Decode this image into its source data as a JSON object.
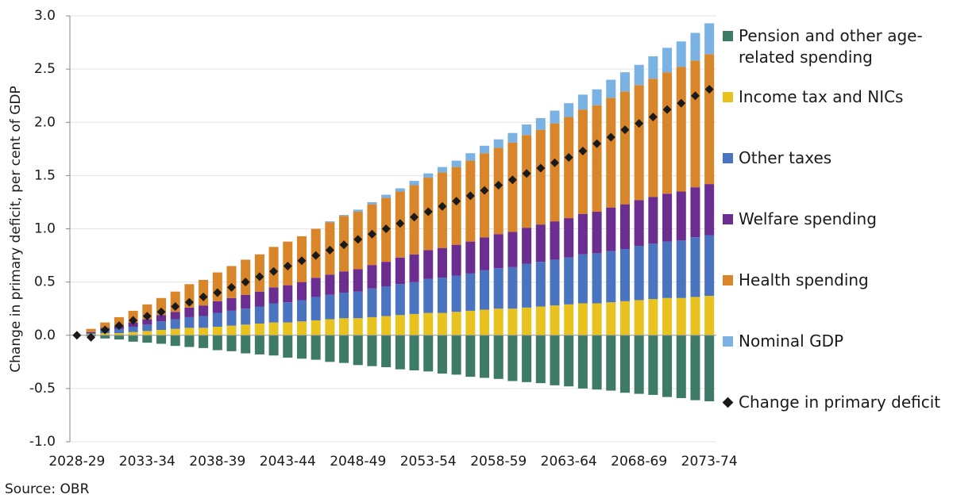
{
  "chart_data": {
    "type": "stacked-bar-line",
    "y_label": "Change in primary deficit, per cent of GDP",
    "source": "Source: OBR",
    "categories": [
      "2028-29",
      null,
      null,
      null,
      null,
      "2033-34",
      null,
      null,
      null,
      null,
      "2038-39",
      null,
      null,
      null,
      null,
      "2043-44",
      null,
      null,
      null,
      null,
      "2048-49",
      null,
      null,
      null,
      null,
      "2053-54",
      null,
      null,
      null,
      null,
      "2058-59",
      null,
      null,
      null,
      null,
      "2063-64",
      null,
      null,
      null,
      null,
      "2068-69",
      null,
      null,
      null,
      null,
      "2073-74"
    ],
    "ylim": [
      -1,
      3
    ],
    "yticks": [
      {
        "value": -1,
        "label": "-1.0"
      },
      {
        "value": -0.5,
        "label": "-0.5"
      },
      {
        "value": 0,
        "label": "0.0"
      },
      {
        "value": 0.5,
        "label": "0.5"
      },
      {
        "value": 1,
        "label": "1.0"
      },
      {
        "value": 1.5,
        "label": "1.5"
      },
      {
        "value": 2,
        "label": "2.0"
      },
      {
        "value": 2.5,
        "label": "2.5"
      },
      {
        "value": 3,
        "label": "3.0"
      }
    ],
    "grid": true,
    "series": [
      {
        "name": "Pension and other age-related spending",
        "color": "#3d7a68",
        "kind": "bar",
        "values": [
          0,
          -0.01,
          -0.03,
          -0.04,
          -0.06,
          -0.07,
          -0.08,
          -0.1,
          -0.11,
          -0.12,
          -0.14,
          -0.15,
          -0.17,
          -0.18,
          -0.19,
          -0.21,
          -0.22,
          -0.23,
          -0.25,
          -0.26,
          -0.28,
          -0.29,
          -0.3,
          -0.32,
          -0.33,
          -0.34,
          -0.36,
          -0.37,
          -0.39,
          -0.4,
          -0.41,
          -0.43,
          -0.44,
          -0.45,
          -0.47,
          -0.48,
          -0.5,
          -0.51,
          -0.52,
          -0.54,
          -0.55,
          -0.56,
          -0.58,
          -0.59,
          -0.61,
          -0.62
        ]
      },
      {
        "name": "Income tax and NICs",
        "color": "#e8c21f",
        "kind": "bar",
        "values": [
          0,
          0.01,
          0.02,
          0.02,
          0.03,
          0.04,
          0.05,
          0.06,
          0.07,
          0.07,
          0.08,
          0.09,
          0.1,
          0.11,
          0.12,
          0.12,
          0.13,
          0.14,
          0.15,
          0.16,
          0.16,
          0.17,
          0.18,
          0.19,
          0.2,
          0.21,
          0.21,
          0.22,
          0.23,
          0.24,
          0.25,
          0.25,
          0.26,
          0.27,
          0.28,
          0.29,
          0.3,
          0.3,
          0.31,
          0.32,
          0.33,
          0.34,
          0.35,
          0.35,
          0.36,
          0.37
        ]
      },
      {
        "name": "Other taxes",
        "color": "#4a74c0",
        "kind": "bar",
        "values": [
          0,
          0.01,
          0.03,
          0.04,
          0.05,
          0.06,
          0.08,
          0.09,
          0.1,
          0.11,
          0.13,
          0.14,
          0.15,
          0.16,
          0.18,
          0.19,
          0.2,
          0.22,
          0.23,
          0.24,
          0.25,
          0.27,
          0.28,
          0.29,
          0.3,
          0.32,
          0.33,
          0.34,
          0.35,
          0.37,
          0.38,
          0.39,
          0.41,
          0.42,
          0.43,
          0.44,
          0.46,
          0.47,
          0.48,
          0.49,
          0.51,
          0.52,
          0.53,
          0.54,
          0.56,
          0.57
        ]
      },
      {
        "name": "Welfare spending",
        "color": "#6b2d8f",
        "kind": "bar",
        "values": [
          0,
          0.01,
          0.02,
          0.03,
          0.04,
          0.05,
          0.06,
          0.07,
          0.09,
          0.1,
          0.11,
          0.12,
          0.13,
          0.14,
          0.15,
          0.16,
          0.17,
          0.18,
          0.19,
          0.2,
          0.21,
          0.22,
          0.23,
          0.25,
          0.26,
          0.27,
          0.28,
          0.29,
          0.3,
          0.31,
          0.32,
          0.33,
          0.34,
          0.35,
          0.36,
          0.37,
          0.38,
          0.39,
          0.41,
          0.42,
          0.43,
          0.44,
          0.45,
          0.46,
          0.47,
          0.48
        ]
      },
      {
        "name": "Health spending",
        "color": "#d9852a",
        "kind": "bar",
        "values": [
          0,
          0.03,
          0.05,
          0.08,
          0.11,
          0.14,
          0.16,
          0.19,
          0.22,
          0.24,
          0.27,
          0.3,
          0.33,
          0.35,
          0.38,
          0.41,
          0.43,
          0.46,
          0.49,
          0.52,
          0.54,
          0.57,
          0.6,
          0.62,
          0.65,
          0.68,
          0.71,
          0.73,
          0.76,
          0.79,
          0.81,
          0.84,
          0.87,
          0.89,
          0.92,
          0.95,
          0.98,
          1.0,
          1.03,
          1.06,
          1.08,
          1.11,
          1.14,
          1.17,
          1.19,
          1.22
        ]
      },
      {
        "name": "Nominal GDP",
        "color": "#7ab3e3",
        "kind": "bar",
        "values": [
          0,
          0,
          0,
          0,
          0,
          0,
          0,
          0,
          0,
          0,
          0,
          0,
          0,
          0,
          0,
          0,
          0,
          0,
          0.01,
          0.01,
          0.02,
          0.02,
          0.03,
          0.03,
          0.04,
          0.04,
          0.05,
          0.06,
          0.07,
          0.07,
          0.08,
          0.09,
          0.1,
          0.11,
          0.12,
          0.13,
          0.14,
          0.15,
          0.17,
          0.18,
          0.19,
          0.21,
          0.23,
          0.24,
          0.26,
          0.29
        ]
      },
      {
        "name": "Change in primary deficit",
        "color": "#1a1a1a",
        "kind": "marker",
        "values": [
          0,
          -0.02,
          0.05,
          0.09,
          0.14,
          0.18,
          0.22,
          0.27,
          0.31,
          0.36,
          0.4,
          0.45,
          0.5,
          0.55,
          0.6,
          0.65,
          0.7,
          0.75,
          0.8,
          0.85,
          0.9,
          0.95,
          1.0,
          1.05,
          1.11,
          1.16,
          1.21,
          1.26,
          1.31,
          1.36,
          1.41,
          1.46,
          1.52,
          1.57,
          1.62,
          1.67,
          1.73,
          1.8,
          1.86,
          1.93,
          1.99,
          2.05,
          2.12,
          2.18,
          2.25,
          2.31
        ]
      }
    ]
  }
}
